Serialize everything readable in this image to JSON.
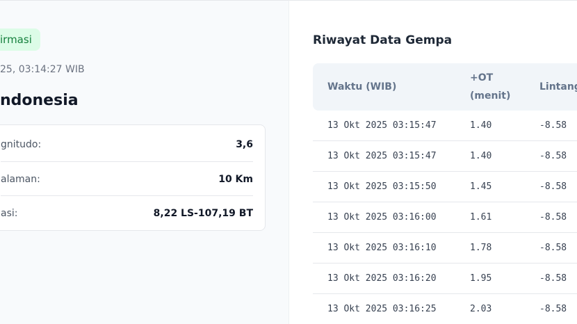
{
  "status_badge": "irmasi",
  "datetime": "25, 03:14:27 WIB",
  "region": "ndonesia",
  "details": [
    {
      "label": "gnitudo:",
      "value": "3,6"
    },
    {
      "label": "alaman:",
      "value": "10 Km"
    },
    {
      "label": "asi:",
      "value": "8,22 LS-107,19 BT"
    }
  ],
  "history": {
    "title": "Riwayat Data Gempa",
    "columns": [
      "Waktu (WIB)",
      "+OT (menit)",
      "Lintang"
    ],
    "rows": [
      [
        "13 Okt 2025 03:15:47",
        "1.40",
        "-8.58"
      ],
      [
        "13 Okt 2025 03:15:47",
        "1.40",
        "-8.58"
      ],
      [
        "13 Okt 2025 03:15:50",
        "1.45",
        "-8.58"
      ],
      [
        "13 Okt 2025 03:16:00",
        "1.61",
        "-8.58"
      ],
      [
        "13 Okt 2025 03:16:10",
        "1.78",
        "-8.58"
      ],
      [
        "13 Okt 2025 03:16:20",
        "1.95",
        "-8.58"
      ],
      [
        "13 Okt 2025 03:16:25",
        "2.03",
        "-8.58"
      ]
    ]
  }
}
